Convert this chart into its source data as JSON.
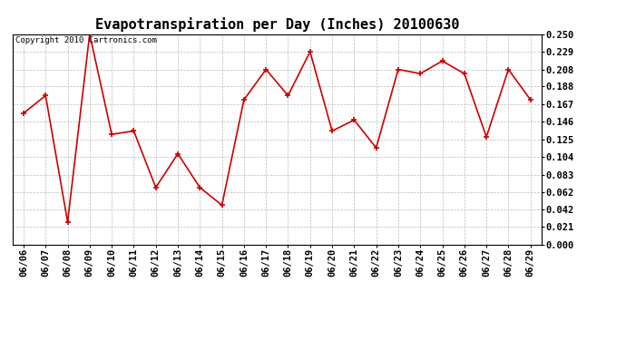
{
  "title": "Evapotranspiration per Day (Inches) 20100630",
  "copyright_text": "Copyright 2010 Cartronics.com",
  "dates": [
    "06/06",
    "06/07",
    "06/08",
    "06/09",
    "06/10",
    "06/11",
    "06/12",
    "06/13",
    "06/14",
    "06/15",
    "06/16",
    "06/17",
    "06/18",
    "06/19",
    "06/20",
    "06/21",
    "06/22",
    "06/23",
    "06/24",
    "06/25",
    "06/26",
    "06/27",
    "06/28",
    "06/29"
  ],
  "values": [
    0.156,
    0.177,
    0.027,
    0.25,
    0.131,
    0.135,
    0.068,
    0.108,
    0.068,
    0.047,
    0.172,
    0.208,
    0.177,
    0.229,
    0.135,
    0.148,
    0.115,
    0.208,
    0.203,
    0.218,
    0.203,
    0.128,
    0.208,
    0.172
  ],
  "line_color": "#cc0000",
  "marker": "+",
  "marker_size": 5,
  "ylim": [
    0.0,
    0.25
  ],
  "yticks": [
    0.0,
    0.021,
    0.042,
    0.062,
    0.083,
    0.104,
    0.125,
    0.146,
    0.167,
    0.188,
    0.208,
    0.229,
    0.25
  ],
  "background_color": "#ffffff",
  "plot_bg_color": "#ffffff",
  "grid_color": "#bbbbbb",
  "title_fontsize": 11,
  "tick_fontsize": 7.5,
  "copyright_fontsize": 6.5
}
